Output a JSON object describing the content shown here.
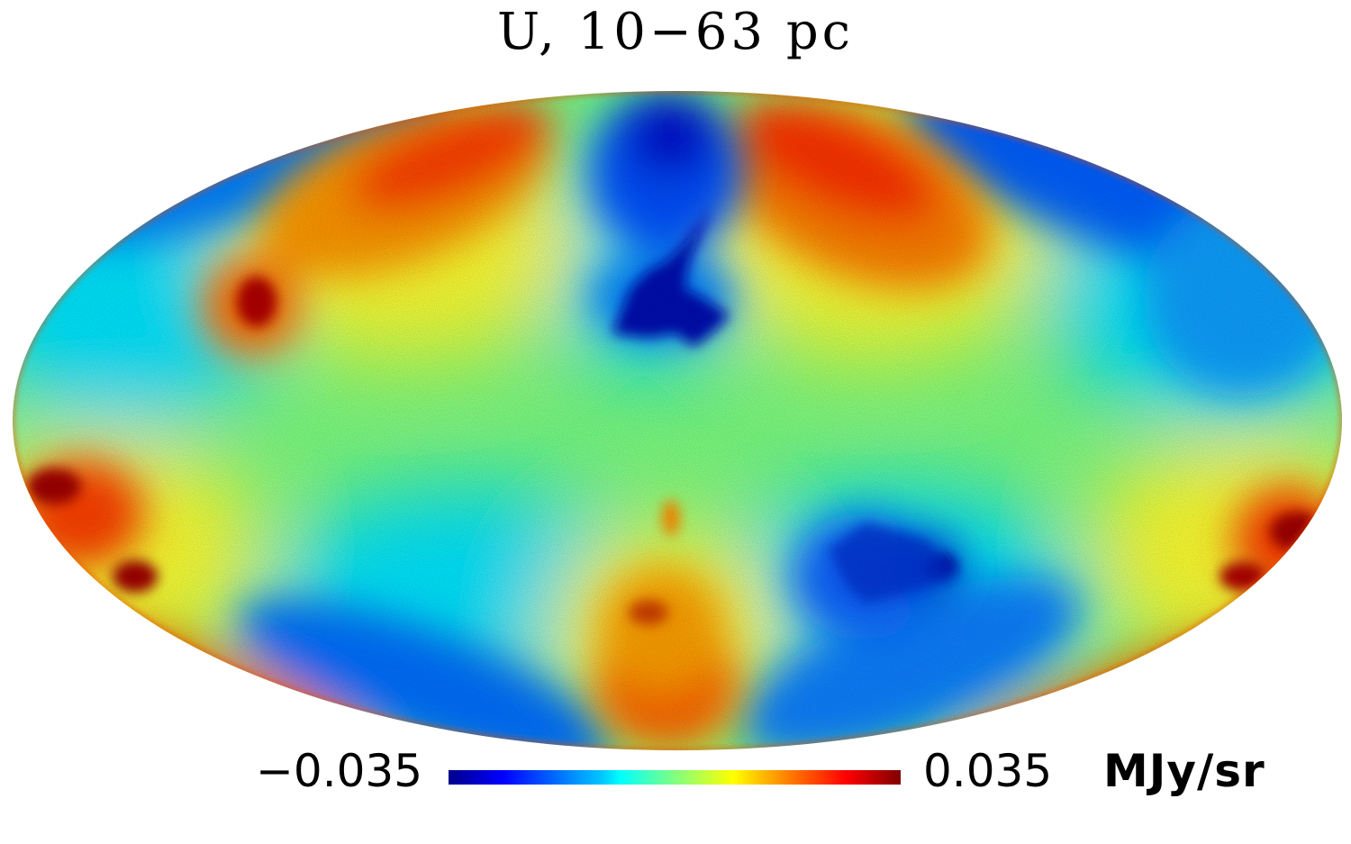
{
  "title": "U, 10−63 pc",
  "projection": "mollweide",
  "colormap": {
    "name": "jet",
    "stops": [
      "#00008b",
      "#0000ff",
      "#00c8ff",
      "#00ffff",
      "#80ff80",
      "#ffff00",
      "#ff8000",
      "#ff0000",
      "#800000"
    ]
  },
  "colorbar": {
    "min_label": "−0.035",
    "max_label": "0.035",
    "unit": "MJy/sr",
    "min": -0.035,
    "max": 0.035
  },
  "colors": {
    "background": "#ffffff",
    "baseline": "#7dff80",
    "dark_red": "#800000",
    "red": "#ff2000",
    "orange": "#ff9000",
    "yellow": "#ffff00",
    "cyan": "#00e0ff",
    "blue": "#0060ff",
    "dark_blue": "#0000b0"
  }
}
